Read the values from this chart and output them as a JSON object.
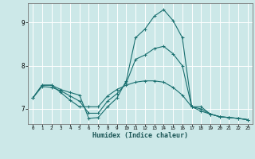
{
  "xlabel": "Humidex (Indice chaleur)",
  "ylabel": "",
  "background_color": "#cce8e8",
  "grid_color": "#ffffff",
  "line_color": "#1a7070",
  "x_ticks": [
    0,
    1,
    2,
    3,
    4,
    5,
    6,
    7,
    8,
    9,
    10,
    11,
    12,
    13,
    14,
    15,
    16,
    17,
    18,
    19,
    20,
    21,
    22,
    23
  ],
  "y_ticks": [
    7,
    8,
    9
  ],
  "xlim": [
    -0.5,
    23.5
  ],
  "ylim": [
    6.65,
    9.45
  ],
  "series": [
    [
      7.25,
      7.55,
      7.55,
      7.45,
      7.38,
      7.32,
      6.78,
      6.8,
      7.05,
      7.25,
      7.65,
      8.65,
      8.85,
      9.15,
      9.3,
      9.05,
      8.65,
      7.05,
      7.05,
      6.88,
      6.82,
      6.8,
      6.78,
      6.75
    ],
    [
      7.25,
      7.55,
      7.55,
      7.38,
      7.2,
      7.05,
      7.05,
      7.05,
      7.3,
      7.45,
      7.55,
      7.62,
      7.65,
      7.65,
      7.62,
      7.5,
      7.32,
      7.05,
      6.95,
      6.88,
      6.82,
      6.8,
      6.78,
      6.75
    ],
    [
      7.25,
      7.52,
      7.5,
      7.42,
      7.3,
      7.18,
      6.9,
      6.9,
      7.18,
      7.35,
      7.6,
      8.15,
      8.25,
      8.4,
      8.45,
      8.28,
      8.0,
      7.05,
      7.0,
      6.88,
      6.82,
      6.8,
      6.78,
      6.75
    ]
  ]
}
